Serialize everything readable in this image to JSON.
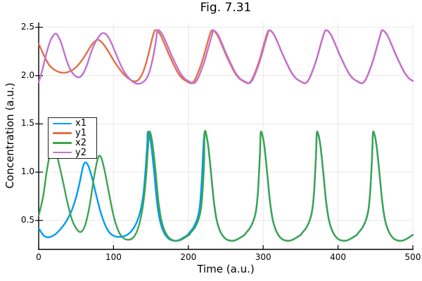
{
  "chart_data": {
    "type": "line",
    "title": "Fig. 7.31",
    "xlabel": "Time (a.u.)",
    "ylabel": "Concentration (a.u.)",
    "xlim": [
      0,
      500
    ],
    "ylim": [
      0.2,
      2.55
    ],
    "x_ticks": [
      "0",
      "100",
      "200",
      "300",
      "400",
      "500"
    ],
    "y_ticks": [
      "0.5",
      "1.0",
      "1.5",
      "2.0",
      "2.5"
    ],
    "grid": true,
    "legend_position": "left-middle",
    "legend_entries": [
      "x1",
      "y1",
      "x2",
      "y2"
    ],
    "series": [
      {
        "name": "x1",
        "color": "#009AF9",
        "pre": [
          [
            0,
            0.42
          ],
          [
            6,
            0.35
          ],
          [
            12,
            0.325
          ],
          [
            20,
            0.345
          ],
          [
            28,
            0.4
          ],
          [
            36,
            0.48
          ],
          [
            44,
            0.6
          ],
          [
            50,
            0.74
          ],
          [
            55,
            0.9
          ],
          [
            59,
            1.05
          ],
          [
            62,
            1.1
          ],
          [
            66,
            1.07
          ],
          [
            71,
            0.95
          ],
          [
            77,
            0.76
          ],
          [
            83,
            0.58
          ],
          [
            89,
            0.45
          ],
          [
            95,
            0.37
          ],
          [
            102,
            0.335
          ],
          [
            110,
            0.33
          ],
          [
            118,
            0.35
          ],
          [
            125,
            0.4
          ],
          [
            131,
            0.48
          ],
          [
            136,
            0.6
          ],
          [
            140,
            0.78
          ],
          [
            143,
            1.05
          ],
          [
            145,
            1.28
          ]
        ],
        "cycles": {
          "peak_times": [
            146,
            222,
            297,
            372,
            447
          ],
          "template": [
            [
              0,
              1.42
            ],
            [
              4,
              1.3
            ],
            [
              8,
              1.02
            ],
            [
              12,
              0.7
            ],
            [
              16,
              0.5
            ],
            [
              21,
              0.38
            ],
            [
              27,
              0.315
            ],
            [
              34,
              0.29
            ],
            [
              41,
              0.295
            ],
            [
              48,
              0.325
            ],
            [
              53,
              0.35
            ],
            [
              55,
              0.37
            ],
            [
              61,
              0.43
            ],
            [
              66,
              0.52
            ],
            [
              69,
              0.63
            ],
            [
              71,
              0.8
            ],
            [
              73,
              1.08
            ],
            [
              74,
              1.25
            ]
          ],
          "t_end": 500
        }
      },
      {
        "name": "y1",
        "color": "#E36F47",
        "pre": [
          [
            0,
            2.33
          ],
          [
            7,
            2.21
          ],
          [
            14,
            2.11
          ],
          [
            21,
            2.06
          ],
          [
            28,
            2.035
          ],
          [
            35,
            2.03
          ],
          [
            42,
            2.045
          ],
          [
            49,
            2.08
          ],
          [
            56,
            2.14
          ],
          [
            63,
            2.22
          ],
          [
            70,
            2.31
          ],
          [
            76,
            2.36
          ],
          [
            80,
            2.37
          ],
          [
            86,
            2.33
          ],
          [
            93,
            2.25
          ],
          [
            100,
            2.16
          ],
          [
            107,
            2.08
          ],
          [
            114,
            2.01
          ],
          [
            121,
            1.965
          ],
          [
            127,
            1.94
          ],
          [
            133,
            1.955
          ],
          [
            138,
            2.01
          ],
          [
            142,
            2.09
          ],
          [
            146,
            2.2
          ],
          [
            150,
            2.33
          ],
          [
            153,
            2.42
          ]
        ],
        "cycles": {
          "peak_times": [
            156,
            232,
            308,
            384,
            459
          ],
          "template": [
            [
              0,
              2.47
            ],
            [
              6,
              2.43
            ],
            [
              12,
              2.33
            ],
            [
              18,
              2.22
            ],
            [
              24,
              2.12
            ],
            [
              30,
              2.03
            ],
            [
              36,
              1.97
            ],
            [
              41,
              1.945
            ],
            [
              48,
              1.92
            ],
            [
              53,
              1.96
            ],
            [
              58,
              2.05
            ],
            [
              63,
              2.16
            ],
            [
              67,
              2.27
            ],
            [
              71,
              2.38
            ],
            [
              73,
              2.43
            ]
          ],
          "t_end": 500
        }
      },
      {
        "name": "x2",
        "color": "#3DA44E",
        "pre": [
          [
            0,
            0.55
          ],
          [
            6,
            0.75
          ],
          [
            11,
            1.02
          ],
          [
            16,
            1.22
          ],
          [
            20,
            1.28
          ],
          [
            26,
            1.12
          ],
          [
            32,
            0.92
          ],
          [
            38,
            0.7
          ],
          [
            44,
            0.52
          ],
          [
            50,
            0.42
          ],
          [
            56,
            0.38
          ],
          [
            62,
            0.45
          ],
          [
            68,
            0.65
          ],
          [
            74,
            0.95
          ],
          [
            79,
            1.14
          ],
          [
            83,
            1.16
          ],
          [
            88,
            1.02
          ],
          [
            94,
            0.78
          ],
          [
            100,
            0.55
          ],
          [
            106,
            0.4
          ],
          [
            112,
            0.325
          ],
          [
            119,
            0.3
          ],
          [
            126,
            0.32
          ],
          [
            132,
            0.4
          ],
          [
            137,
            0.55
          ],
          [
            141,
            0.75
          ],
          [
            144,
            1.0
          ],
          [
            146,
            1.24
          ]
        ],
        "cycles": {
          "peak_times": [
            148,
            222,
            297,
            372,
            447
          ],
          "template": [
            [
              0,
              1.42
            ],
            [
              4,
              1.3
            ],
            [
              8,
              1.02
            ],
            [
              12,
              0.7
            ],
            [
              16,
              0.5
            ],
            [
              21,
              0.38
            ],
            [
              27,
              0.315
            ],
            [
              34,
              0.29
            ],
            [
              41,
              0.295
            ],
            [
              48,
              0.325
            ],
            [
              53,
              0.35
            ],
            [
              55,
              0.37
            ],
            [
              61,
              0.43
            ],
            [
              66,
              0.52
            ],
            [
              69,
              0.63
            ],
            [
              71,
              0.8
            ],
            [
              73,
              1.08
            ],
            [
              74,
              1.25
            ]
          ],
          "t_end": 500
        }
      },
      {
        "name": "y2",
        "color": "#C371D2",
        "pre": [
          [
            0,
            1.93
          ],
          [
            5,
            2.06
          ],
          [
            10,
            2.22
          ],
          [
            15,
            2.35
          ],
          [
            20,
            2.42
          ],
          [
            24,
            2.43
          ],
          [
            29,
            2.36
          ],
          [
            34,
            2.24
          ],
          [
            39,
            2.12
          ],
          [
            44,
            2.04
          ],
          [
            50,
            1.99
          ],
          [
            55,
            1.985
          ],
          [
            60,
            2.03
          ],
          [
            65,
            2.12
          ],
          [
            70,
            2.24
          ],
          [
            76,
            2.35
          ],
          [
            82,
            2.42
          ],
          [
            86,
            2.44
          ],
          [
            91,
            2.42
          ],
          [
            97,
            2.34
          ],
          [
            103,
            2.23
          ],
          [
            109,
            2.12
          ],
          [
            115,
            2.03
          ],
          [
            121,
            1.97
          ],
          [
            127,
            1.93
          ],
          [
            133,
            1.915
          ],
          [
            139,
            1.93
          ],
          [
            144,
            1.97
          ],
          [
            148,
            2.04
          ],
          [
            152,
            2.16
          ],
          [
            155,
            2.28
          ],
          [
            157,
            2.37
          ]
        ],
        "cycles": {
          "peak_times": [
            159,
            233,
            308,
            384,
            459
          ],
          "template": [
            [
              0,
              2.47
            ],
            [
              6,
              2.43
            ],
            [
              12,
              2.33
            ],
            [
              18,
              2.22
            ],
            [
              24,
              2.12
            ],
            [
              30,
              2.03
            ],
            [
              36,
              1.97
            ],
            [
              41,
              1.945
            ],
            [
              48,
              1.92
            ],
            [
              53,
              1.96
            ],
            [
              58,
              2.05
            ],
            [
              63,
              2.16
            ],
            [
              67,
              2.27
            ],
            [
              71,
              2.38
            ],
            [
              73,
              2.43
            ]
          ],
          "t_end": 500
        }
      }
    ]
  }
}
